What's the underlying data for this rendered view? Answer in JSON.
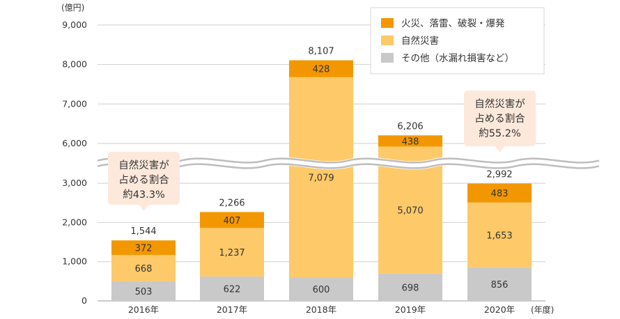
{
  "chart_data": {
    "type": "bar",
    "stacked": true,
    "y_unit": "(億円)",
    "x_unit": "(年度)",
    "ylim": [
      0,
      9000
    ],
    "axis_break": {
      "from": 3000,
      "to": 6000
    },
    "yticks": [
      "9,000",
      "8,000",
      "7,000",
      "6,000",
      "3,000",
      "2,000",
      "1,000",
      "0"
    ],
    "ytick_values": [
      9000,
      8000,
      7000,
      6000,
      3000,
      2000,
      1000,
      0
    ],
    "categories": [
      "2016年",
      "2017年",
      "2018年",
      "2019年",
      "2020年"
    ],
    "series": [
      {
        "name": "その他（水漏れ損害など）",
        "color": "#c9c9c9",
        "values": [
          503,
          622,
          600,
          698,
          856
        ],
        "labels": [
          "503",
          "622",
          "600",
          "698",
          "856"
        ]
      },
      {
        "name": "自然災害",
        "color": "#fdc969",
        "values": [
          668,
          1237,
          7079,
          5070,
          1653
        ],
        "labels": [
          "668",
          "1,237",
          "7,079",
          "5,070",
          "1,653"
        ]
      },
      {
        "name": "火災、落雷、破裂・爆発",
        "color": "#f39700",
        "values": [
          372,
          407,
          428,
          438,
          483
        ],
        "labels": [
          "372",
          "407",
          "428",
          "438",
          "483"
        ]
      }
    ],
    "totals": [
      1544,
      2266,
      8107,
      6206,
      2992
    ],
    "total_labels": [
      "1,544",
      "2,266",
      "8,107",
      "6,206",
      "2,992"
    ],
    "legend": {
      "position": "top-right",
      "items": [
        {
          "label": "火災、落雷、破裂・爆発",
          "color": "#f39700"
        },
        {
          "label": "自然災害",
          "color": "#fdc969"
        },
        {
          "label": "その他（水漏れ損害など）",
          "color": "#c9c9c9"
        }
      ]
    },
    "callouts": [
      {
        "category": "2016年",
        "lines": [
          "自然災害が",
          "占める割合",
          "約43.3%"
        ]
      },
      {
        "category": "2020年",
        "lines": [
          "自然災害が",
          "占める割合",
          "約55.2%"
        ]
      }
    ],
    "grid": true
  }
}
